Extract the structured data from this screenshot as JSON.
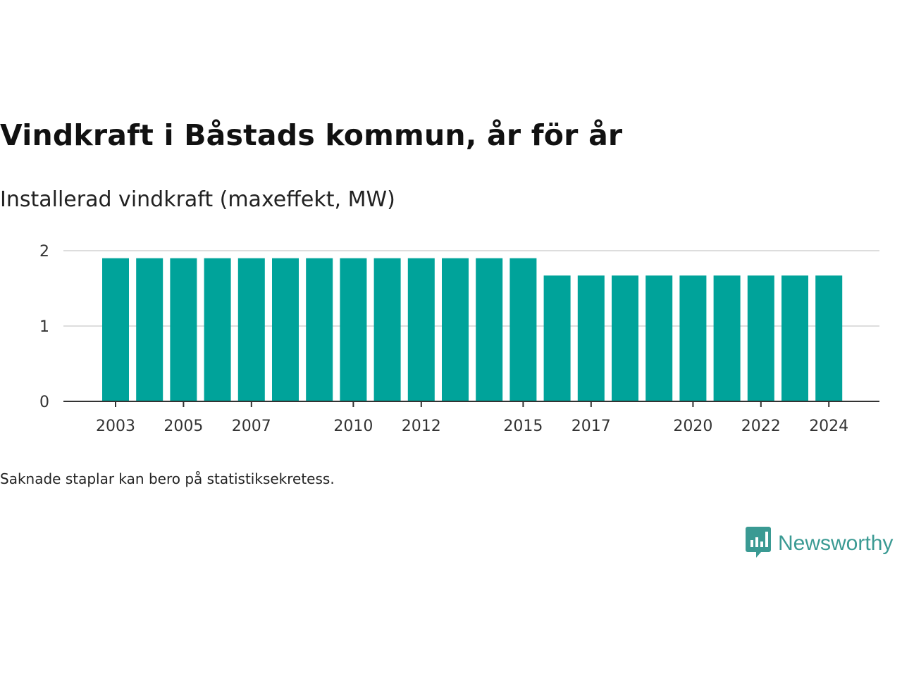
{
  "title": "Vindkraft i Båstads kommun, år för år",
  "subtitle": "Installerad vindkraft (maxeffekt, MW)",
  "footnote": "Saknade staplar kan bero på statistiksekretess.",
  "brand": {
    "name": "Newsworthy",
    "icon": "newsworthy-logo-icon"
  },
  "colors": {
    "bar": "#00a39a",
    "grid": "#dddddd",
    "axis": "#333333",
    "brand": "#3a9a93"
  },
  "chart_data": {
    "type": "bar",
    "categories": [
      "2003",
      "2004",
      "2005",
      "2006",
      "2007",
      "2008",
      "2009",
      "2010",
      "2011",
      "2012",
      "2013",
      "2014",
      "2015",
      "2016",
      "2017",
      "2018",
      "2019",
      "2020",
      "2021",
      "2022",
      "2023",
      "2024"
    ],
    "values": [
      1.9,
      1.9,
      1.9,
      1.9,
      1.9,
      1.9,
      1.9,
      1.9,
      1.9,
      1.9,
      1.9,
      1.9,
      1.9,
      1.67,
      1.67,
      1.67,
      1.67,
      1.67,
      1.67,
      1.67,
      1.67,
      1.67
    ],
    "x_tick_labels": [
      "2003",
      "2005",
      "2007",
      "2010",
      "2012",
      "2015",
      "2017",
      "2020",
      "2022",
      "2024"
    ],
    "y_ticks": [
      0,
      1,
      2
    ],
    "ylim": [
      0,
      2
    ],
    "title": "Vindkraft i Båstads kommun, år för år",
    "ylabel": "Installerad vindkraft (maxeffekt, MW)",
    "xlabel": "",
    "grid": true,
    "legend": "none"
  }
}
